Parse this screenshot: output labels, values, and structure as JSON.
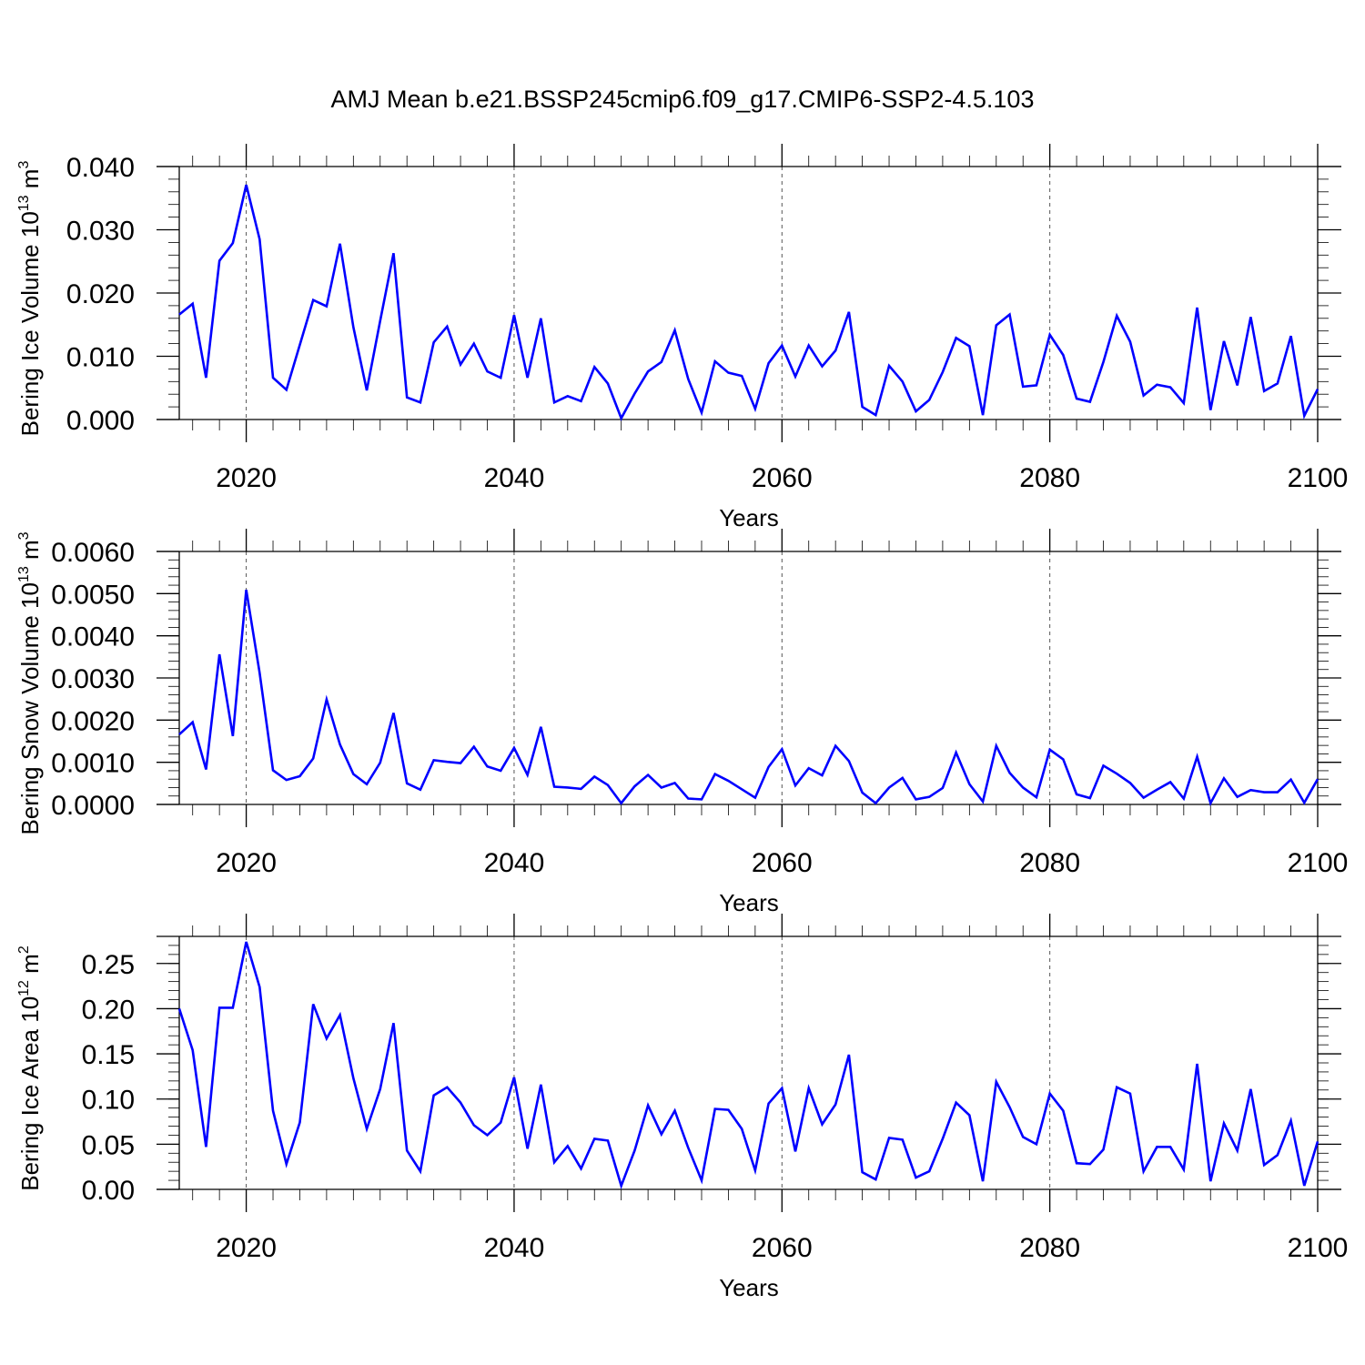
{
  "title": "AMJ Mean b.e21.BSSP245cmip6.f09_g17.CMIP6-SSP2-4.5.103",
  "series_color": "#0000ff",
  "chart_data": [
    {
      "type": "line",
      "ylabel_main": "Bering Ice Volume 10",
      "ylabel_exp": "13",
      "ylabel_unit": " m",
      "ylabel_unit_exp": "3",
      "xlabel": "Years",
      "xlim": [
        2015,
        2100
      ],
      "ylim": [
        0,
        0.04
      ],
      "xticks": [
        2020,
        2040,
        2060,
        2080,
        2100
      ],
      "yticks": [
        0,
        0.01,
        0.02,
        0.03,
        0.04
      ],
      "ytick_labels": [
        "0.000",
        "0.010",
        "0.020",
        "0.030",
        "0.040"
      ],
      "y_minor_step": 0.002,
      "grid": "dashed vertical at major x ticks",
      "x_start": 2015,
      "values": [
        0.0166,
        0.0183,
        0.0066,
        0.0251,
        0.0279,
        0.0371,
        0.0285,
        0.0066,
        0.0047,
        0.0118,
        0.0189,
        0.0179,
        0.0278,
        0.0146,
        0.0046,
        0.0156,
        0.0263,
        0.0035,
        0.0027,
        0.0122,
        0.0147,
        0.0087,
        0.012,
        0.0076,
        0.0066,
        0.0165,
        0.0066,
        0.016,
        0.0027,
        0.0037,
        0.0029,
        0.0083,
        0.0057,
        0.0002,
        0.0041,
        0.0076,
        0.0091,
        0.0141,
        0.0064,
        0.0011,
        0.0092,
        0.0074,
        0.0069,
        0.0017,
        0.0089,
        0.0117,
        0.0068,
        0.0117,
        0.0084,
        0.0109,
        0.017,
        0.002,
        0.0007,
        0.0085,
        0.006,
        0.0013,
        0.0031,
        0.0075,
        0.0129,
        0.0116,
        0.0007,
        0.0149,
        0.0166,
        0.0052,
        0.0054,
        0.0134,
        0.0102,
        0.0033,
        0.0028,
        0.0091,
        0.0164,
        0.0123,
        0.0038,
        0.0055,
        0.0051,
        0.0026,
        0.0177,
        0.0015,
        0.0124,
        0.0054,
        0.0162,
        0.0045,
        0.0057,
        0.0132,
        0.0006,
        0.0048
      ]
    },
    {
      "type": "line",
      "ylabel_main": "Bering Snow Volume 10",
      "ylabel_exp": "13",
      "ylabel_unit": " m",
      "ylabel_unit_exp": "3",
      "xlabel": "Years",
      "xlim": [
        2015,
        2100
      ],
      "ylim": [
        0,
        0.006
      ],
      "xticks": [
        2020,
        2040,
        2060,
        2080,
        2100
      ],
      "yticks": [
        0,
        0.001,
        0.002,
        0.003,
        0.004,
        0.005,
        0.006
      ],
      "ytick_labels": [
        "0.0000",
        "0.0010",
        "0.0020",
        "0.0030",
        "0.0040",
        "0.0050",
        "0.0060"
      ],
      "y_minor_step": 0.0002,
      "grid": "dashed vertical at major x ticks",
      "x_start": 2015,
      "values": [
        0.00166,
        0.00195,
        0.00083,
        0.00356,
        0.00162,
        0.00509,
        0.00312,
        0.00081,
        0.00058,
        0.00067,
        0.00109,
        0.00249,
        0.00142,
        0.00072,
        0.00048,
        0.00099,
        0.00217,
        0.0005,
        0.00035,
        0.00105,
        0.00101,
        0.00098,
        0.00137,
        0.0009,
        0.0008,
        0.00134,
        0.0007,
        0.00184,
        0.00042,
        0.0004,
        0.00037,
        0.00066,
        0.00046,
        3e-05,
        0.00043,
        0.0007,
        0.0004,
        0.00051,
        0.00014,
        0.00012,
        0.00072,
        0.00056,
        0.00036,
        0.00016,
        0.00089,
        0.00131,
        0.00045,
        0.00086,
        0.00069,
        0.00139,
        0.00103,
        0.00028,
        3e-05,
        0.0004,
        0.00063,
        0.00012,
        0.00018,
        0.00039,
        0.00123,
        0.00048,
        7e-05,
        0.00139,
        0.00075,
        0.0004,
        0.00017,
        0.0013,
        0.00107,
        0.00024,
        0.00015,
        0.00092,
        0.00073,
        0.00051,
        0.00016,
        0.00035,
        0.00053,
        0.00014,
        0.00113,
        3e-05,
        0.00062,
        0.00018,
        0.00034,
        0.00029,
        0.00029,
        0.00059,
        4e-05,
        0.0006
      ]
    },
    {
      "type": "line",
      "ylabel_main": "Bering Ice Area 10",
      "ylabel_exp": "12",
      "ylabel_unit": " m",
      "ylabel_unit_exp": "2",
      "xlabel": "Years",
      "xlim": [
        2015,
        2100
      ],
      "ylim": [
        0,
        0.28
      ],
      "xticks": [
        2020,
        2040,
        2060,
        2080,
        2100
      ],
      "yticks": [
        0,
        0.05,
        0.1,
        0.15,
        0.2,
        0.25
      ],
      "ytick_labels": [
        "0.00",
        "0.05",
        "0.10",
        "0.15",
        "0.20",
        "0.25"
      ],
      "y_minor_step": 0.01,
      "grid": "dashed vertical at major x ticks",
      "x_start": 2015,
      "values": [
        0.2,
        0.154,
        0.047,
        0.201,
        0.201,
        0.274,
        0.224,
        0.087,
        0.028,
        0.074,
        0.205,
        0.167,
        0.193,
        0.123,
        0.067,
        0.111,
        0.184,
        0.043,
        0.02,
        0.104,
        0.113,
        0.096,
        0.071,
        0.06,
        0.074,
        0.124,
        0.045,
        0.116,
        0.03,
        0.048,
        0.023,
        0.056,
        0.054,
        0.004,
        0.043,
        0.093,
        0.061,
        0.087,
        0.046,
        0.01,
        0.089,
        0.088,
        0.067,
        0.021,
        0.095,
        0.112,
        0.042,
        0.112,
        0.072,
        0.094,
        0.149,
        0.019,
        0.011,
        0.057,
        0.055,
        0.013,
        0.02,
        0.056,
        0.096,
        0.082,
        0.009,
        0.119,
        0.091,
        0.058,
        0.05,
        0.106,
        0.087,
        0.029,
        0.028,
        0.044,
        0.113,
        0.106,
        0.02,
        0.047,
        0.047,
        0.022,
        0.139,
        0.009,
        0.073,
        0.043,
        0.111,
        0.027,
        0.038,
        0.076,
        0.004,
        0.053
      ]
    }
  ]
}
